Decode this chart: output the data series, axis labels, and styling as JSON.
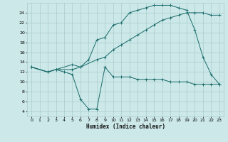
{
  "xlabel": "Humidex (Indice chaleur)",
  "bg_color": "#cce8e8",
  "line_color": "#1a6b6b",
  "grid_color": "#aacccc",
  "xlim": [
    -0.5,
    23.5
  ],
  "ylim": [
    3,
    26
  ],
  "xticks": [
    0,
    1,
    2,
    3,
    4,
    5,
    6,
    7,
    8,
    9,
    10,
    11,
    12,
    13,
    14,
    15,
    16,
    17,
    18,
    19,
    20,
    21,
    22,
    23
  ],
  "yticks": [
    4,
    6,
    8,
    10,
    12,
    14,
    16,
    18,
    20,
    22,
    24
  ],
  "line1_x": [
    0,
    2,
    3,
    4,
    5,
    6,
    7,
    8,
    9,
    10,
    11,
    12,
    13,
    14,
    15,
    16,
    17,
    18,
    19,
    20,
    21,
    22,
    23
  ],
  "line1_y": [
    13,
    12,
    12.5,
    12,
    11.5,
    6.5,
    4.5,
    4.5,
    13,
    11,
    11,
    11,
    10.5,
    10.5,
    10.5,
    10.5,
    10.0,
    10.0,
    10.0,
    9.5,
    9.5,
    9.5,
    9.5
  ],
  "line2_x": [
    0,
    2,
    3,
    5,
    6,
    7,
    8,
    9,
    10,
    11,
    12,
    13,
    14,
    15,
    16,
    17,
    18,
    19,
    20,
    21,
    22,
    23
  ],
  "line2_y": [
    13,
    12,
    12.5,
    12.5,
    13,
    14.5,
    18.5,
    19,
    21.5,
    22,
    24,
    24.5,
    25,
    25.5,
    25.5,
    25.5,
    25,
    24.5,
    20.5,
    15,
    11.5,
    9.5
  ],
  "line3_x": [
    0,
    2,
    3,
    5,
    6,
    8,
    9,
    10,
    11,
    12,
    13,
    14,
    15,
    16,
    17,
    18,
    19,
    20,
    21,
    22,
    23
  ],
  "line3_y": [
    13,
    12,
    12.5,
    13.5,
    13.0,
    14.5,
    15,
    16.5,
    17.5,
    18.5,
    19.5,
    20.5,
    21.5,
    22.5,
    23,
    23.5,
    24,
    24,
    24,
    23.5,
    23.5
  ]
}
